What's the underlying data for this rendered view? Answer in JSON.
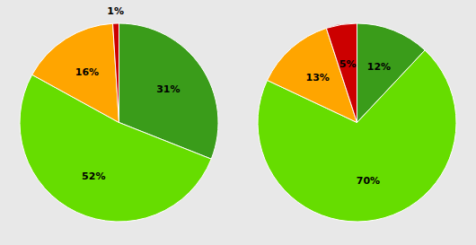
{
  "chart_data": [
    {
      "type": "pie",
      "values": [
        31,
        52,
        16,
        1
      ],
      "value_labels": [
        "31%",
        "52%",
        "16%",
        "1%"
      ],
      "colors": [
        "#3a9c1a",
        "#66dd00",
        "#ffa500",
        "#cc0000"
      ],
      "data_labels": true
    },
    {
      "type": "pie",
      "values": [
        12,
        70,
        13,
        5
      ],
      "value_labels": [
        "12%",
        "70%",
        "13%",
        "5%"
      ],
      "colors": [
        "#3a9c1a",
        "#66dd00",
        "#ffa500",
        "#cc0000"
      ],
      "data_labels": true
    }
  ]
}
